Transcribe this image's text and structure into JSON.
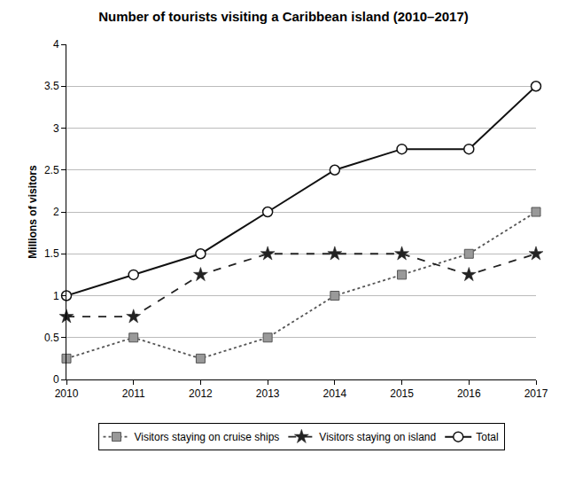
{
  "chart_data": {
    "type": "line",
    "title": "Number of tourists visiting a Caribbean island (2010–2017)",
    "y_label": "Millions of visitors",
    "x": [
      2010,
      2011,
      2012,
      2013,
      2014,
      2015,
      2016,
      2017
    ],
    "series": [
      {
        "name": "Visitors staying on cruise ships",
        "color": "#555555",
        "marker": "square",
        "line_style": "dot",
        "values": [
          0.25,
          0.5,
          0.25,
          0.5,
          1,
          1.25,
          1.5,
          2
        ]
      },
      {
        "name": "Visitors staying on island",
        "color": "#222222",
        "marker": "star",
        "line_style": "dash",
        "values": [
          0.75,
          0.75,
          1.25,
          1.5,
          1.5,
          1.5,
          1.25,
          1.5
        ]
      },
      {
        "name": "Total",
        "color": "#111111",
        "marker": "circle-open",
        "line_style": "solid",
        "values": [
          1,
          1.25,
          1.5,
          2,
          2.5,
          2.75,
          2.75,
          3.5
        ]
      }
    ],
    "xlim": [
      2010,
      2017
    ],
    "xticks": [
      2010,
      2011,
      2012,
      2013,
      2014,
      2015,
      2016,
      2017
    ],
    "ylim": [
      0,
      4
    ],
    "yticks": [
      0,
      0.5,
      1,
      1.5,
      2,
      2.5,
      3,
      3.5,
      4
    ],
    "grid": true,
    "legend": "bottom"
  }
}
